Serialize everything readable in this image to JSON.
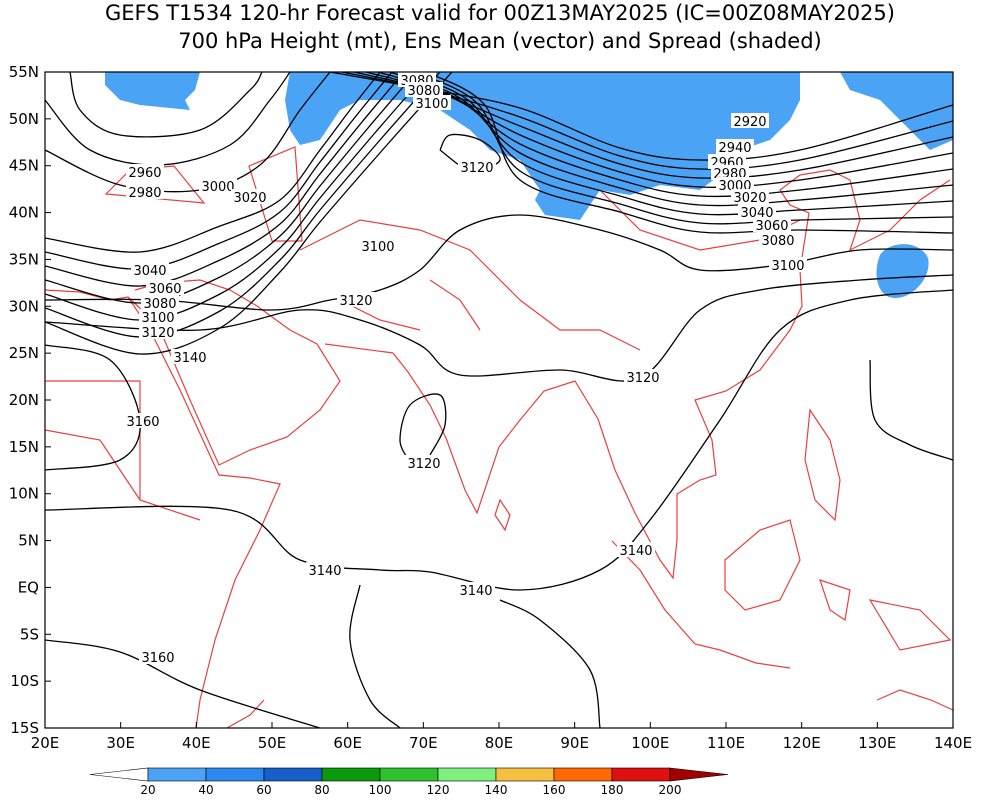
{
  "header": {
    "title_line1": "GEFS T1534 120-hr Forecast valid for 00Z13MAY2025 (IC=00Z08MAY2025)",
    "title_line2": "700 hPa Height (mt), Ens Mean (vector) and Spread (shaded)"
  },
  "map": {
    "lon_ticks": [
      {
        "value": 20,
        "label": "20E"
      },
      {
        "value": 30,
        "label": "30E"
      },
      {
        "value": 40,
        "label": "40E"
      },
      {
        "value": 50,
        "label": "50E"
      },
      {
        "value": 60,
        "label": "60E"
      },
      {
        "value": 70,
        "label": "70E"
      },
      {
        "value": 80,
        "label": "80E"
      },
      {
        "value": 90,
        "label": "90E"
      },
      {
        "value": 100,
        "label": "100E"
      },
      {
        "value": 110,
        "label": "110E"
      },
      {
        "value": 120,
        "label": "120E"
      },
      {
        "value": 130,
        "label": "130E"
      },
      {
        "value": 140,
        "label": "140E"
      }
    ],
    "lat_ticks": [
      {
        "value": 55,
        "label": "55N"
      },
      {
        "value": 50,
        "label": "50N"
      },
      {
        "value": 45,
        "label": "45N"
      },
      {
        "value": 40,
        "label": "40N"
      },
      {
        "value": 35,
        "label": "35N"
      },
      {
        "value": 30,
        "label": "30N"
      },
      {
        "value": 25,
        "label": "25N"
      },
      {
        "value": 20,
        "label": "20N"
      },
      {
        "value": 15,
        "label": "15N"
      },
      {
        "value": 10,
        "label": "10N"
      },
      {
        "value": 5,
        "label": "5N"
      },
      {
        "value": 0,
        "label": "EQ"
      },
      {
        "value": -5,
        "label": "5S"
      },
      {
        "value": -10,
        "label": "10S"
      },
      {
        "value": -15,
        "label": "15S"
      }
    ],
    "contour_labels": [
      3080,
      3080,
      3100,
      2920,
      2940,
      2960,
      2980,
      3000,
      3020,
      3040,
      3060,
      3080,
      3100,
      2960,
      2980,
      3000,
      3020,
      3120,
      3100,
      3040,
      3060,
      3080,
      3100,
      3120,
      3140,
      3120,
      3120,
      3160,
      3120,
      3140,
      3140,
      3140,
      3160
    ],
    "colorbar": {
      "levels": [
        20,
        40,
        60,
        80,
        100,
        120,
        140,
        160,
        180,
        200
      ],
      "colors": [
        "#ffffff",
        "#4aa3f5",
        "#2b88ee",
        "#1560c8",
        "#0a9a0a",
        "#2ec22e",
        "#7ef07e",
        "#f5c040",
        "#ff6a00",
        "#e01010",
        "#a00000"
      ]
    }
  }
}
